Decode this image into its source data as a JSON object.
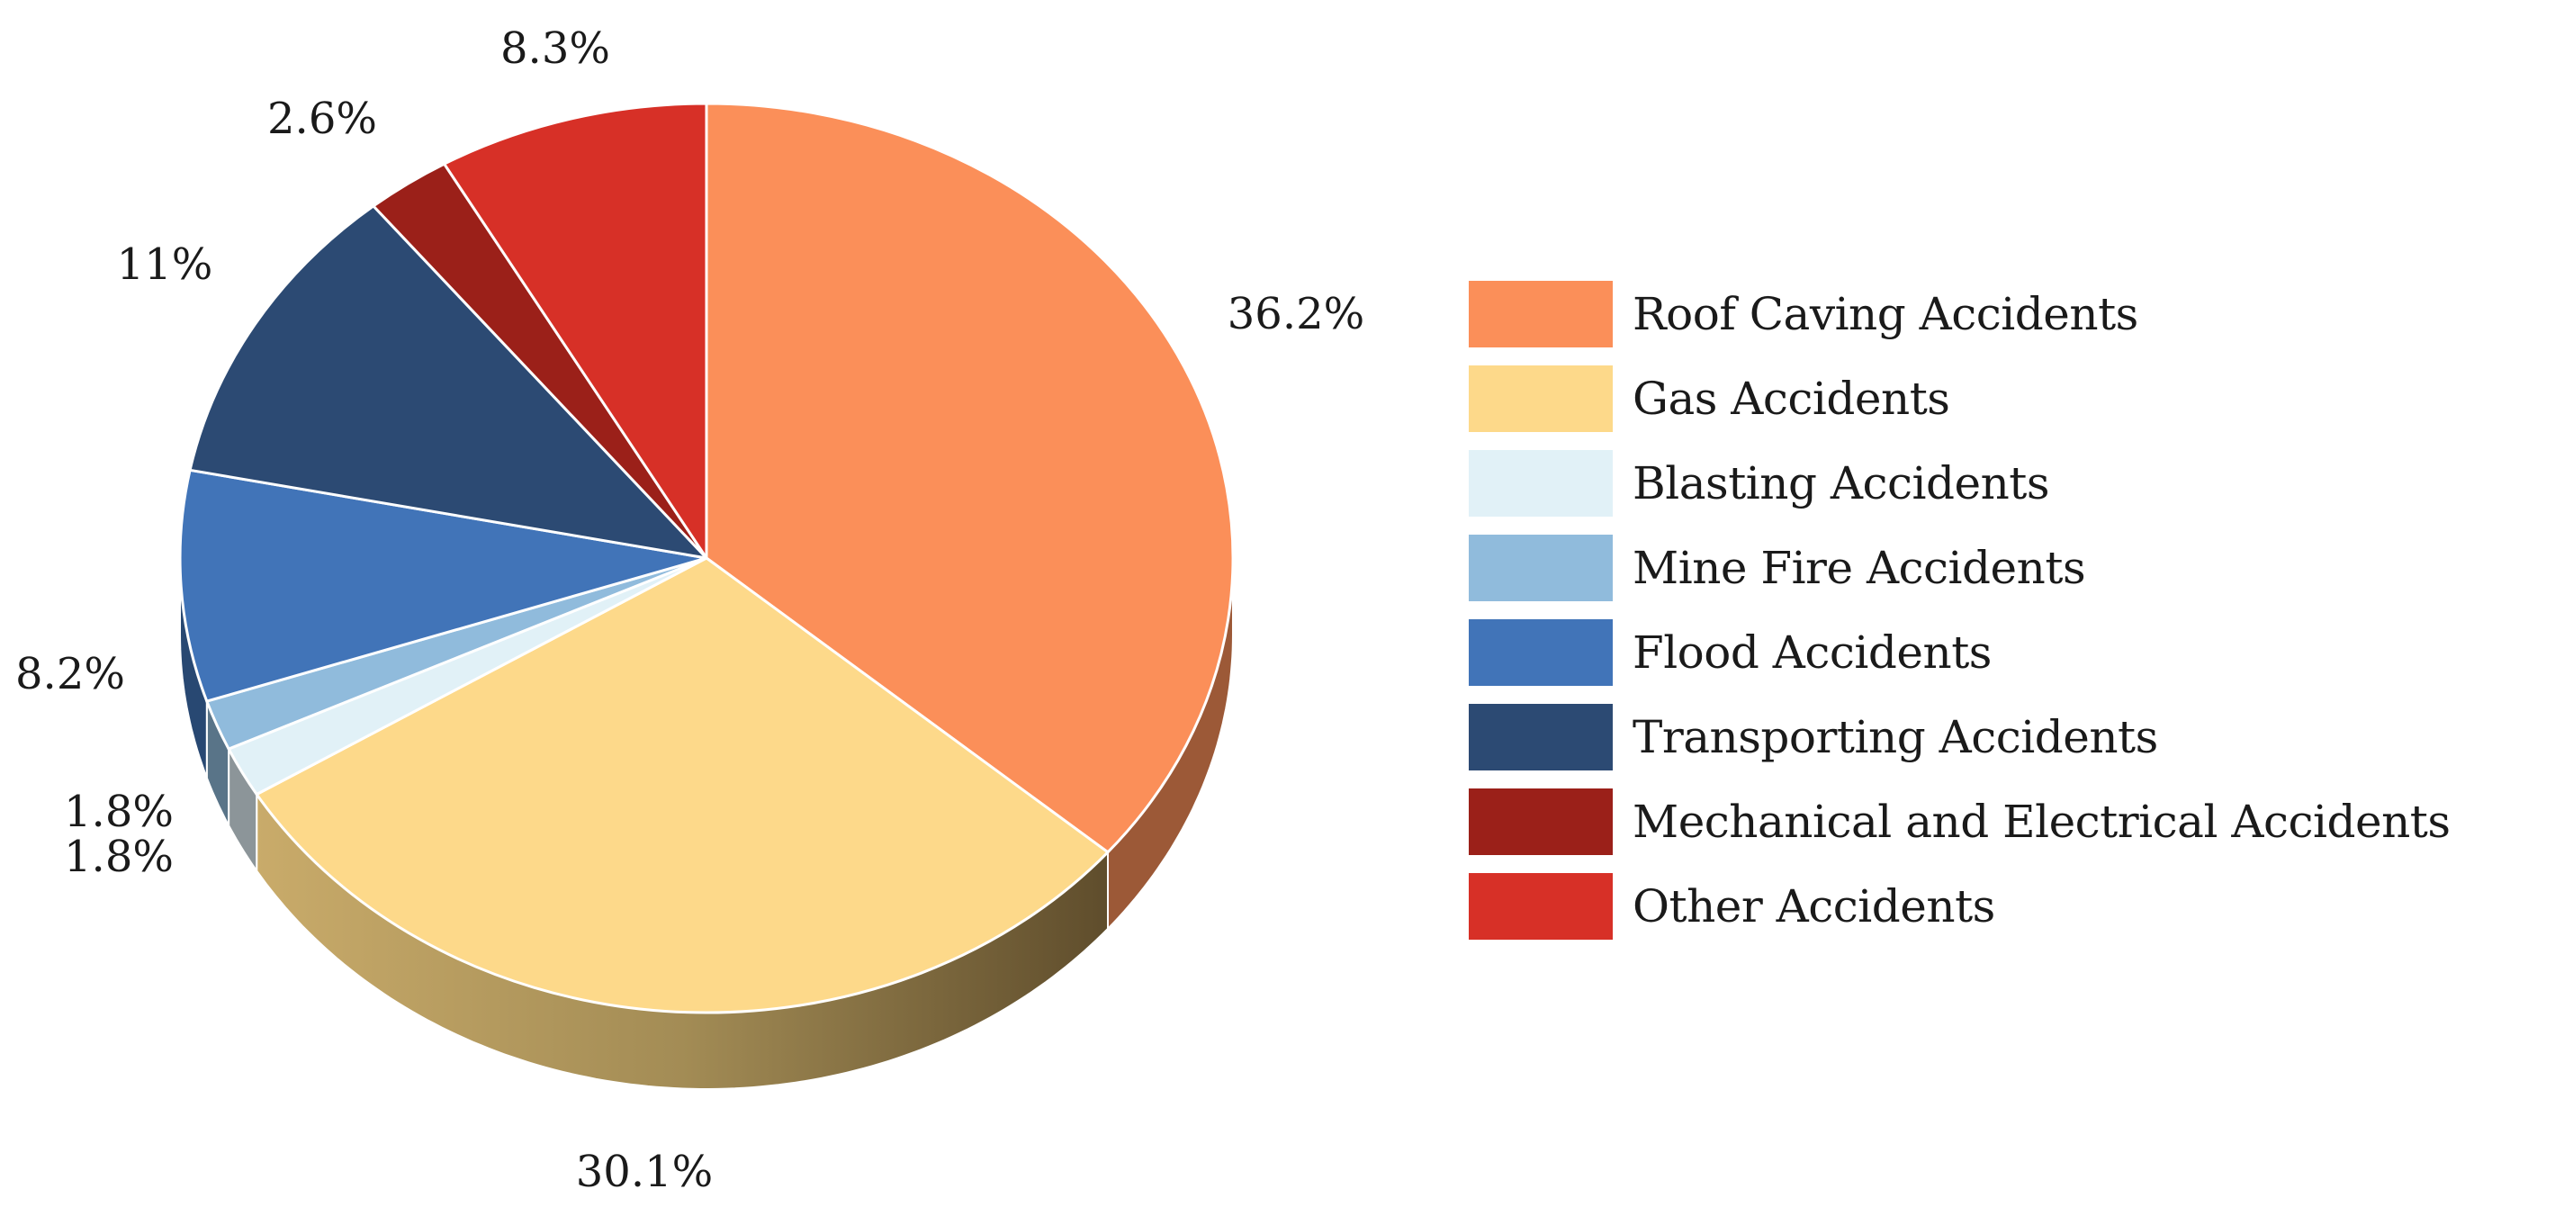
{
  "chart_data": {
    "type": "pie",
    "title": "",
    "legend_position": "right",
    "style": "3d",
    "slices": [
      {
        "name": "Roof Caving Accidents",
        "value": 36.2,
        "label": "36.2%",
        "color": "#fb8f59"
      },
      {
        "name": "Gas Accidents",
        "value": 30.1,
        "label": "30.1%",
        "color": "#fdd98a"
      },
      {
        "name": "Blasting Accidents",
        "value": 1.8,
        "label": "1.8%",
        "color": "#e1f1f7"
      },
      {
        "name": "Mine Fire Accidents",
        "value": 1.8,
        "label": "1.8%",
        "color": "#90bbdc"
      },
      {
        "name": "Flood Accidents",
        "value": 8.2,
        "label": "8.2%",
        "color": "#4174b8"
      },
      {
        "name": "Transporting Accidents",
        "value": 11,
        "label": "11%",
        "color": "#2c4a73"
      },
      {
        "name": "Mechanical and Electrical Accidents",
        "value": 2.6,
        "label": "2.6%",
        "color": "#9b2019"
      },
      {
        "name": "Other Accidents",
        "value": 8.3,
        "label": "8.3%",
        "color": "#d73027"
      }
    ]
  }
}
